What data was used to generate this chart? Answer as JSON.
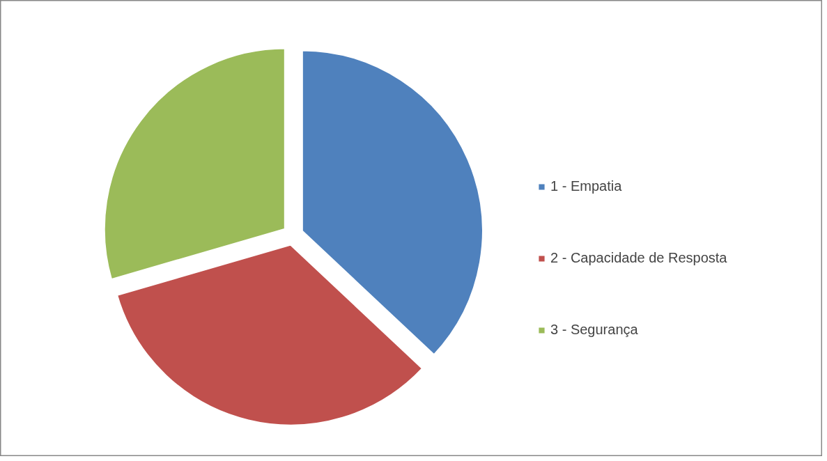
{
  "chart_data": {
    "type": "pie",
    "categories": [
      "1 - Empatia",
      "2 - Capacidade de Resposta",
      "3 - Segurança"
    ],
    "values": [
      37,
      33.5,
      29.5
    ],
    "colors": [
      "#4f81bd",
      "#c0504d",
      "#9bbb59"
    ],
    "legend": "right"
  }
}
